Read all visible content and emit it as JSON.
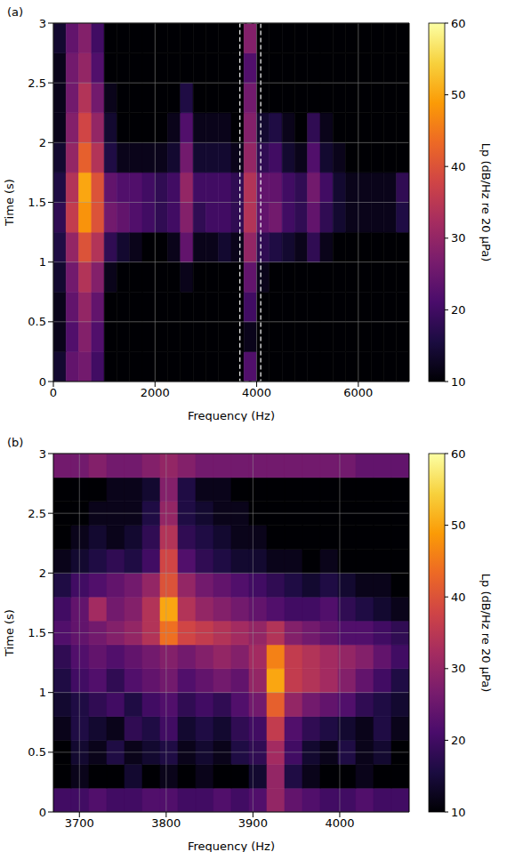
{
  "chart_data": [
    {
      "type": "heatmap",
      "panel_label": "(a)",
      "x_label": "Frequency (Hz)",
      "y_label": "Time (s)",
      "xlim": [
        0,
        7000
      ],
      "xticks": [
        0,
        2000,
        4000,
        6000
      ],
      "ylim": [
        0,
        3
      ],
      "yticks": [
        0,
        0.5,
        1,
        1.5,
        2,
        2.5,
        3
      ],
      "grid": true,
      "x_bins": [
        0,
        250,
        500,
        750,
        1000,
        1250,
        1500,
        1750,
        2000,
        2250,
        2500,
        2750,
        3000,
        3250,
        3500,
        3750,
        4000,
        4250,
        4500,
        4750,
        5000,
        5250,
        5500,
        5750,
        6000,
        6250,
        6500,
        6750,
        7000
      ],
      "y_bins": [
        0,
        0.25,
        0.5,
        0.75,
        1,
        1.25,
        1.5,
        1.75,
        2,
        2.25,
        2.5,
        2.75,
        3
      ],
      "z": [
        [
          14,
          24,
          26,
          20,
          10,
          10,
          10,
          10,
          10,
          10,
          10,
          10,
          10,
          10,
          10,
          22,
          10,
          10,
          10,
          10,
          10,
          10,
          10,
          10,
          10,
          10,
          10,
          10
        ],
        [
          12,
          22,
          28,
          22,
          10,
          10,
          10,
          10,
          10,
          10,
          10,
          10,
          10,
          10,
          10,
          12,
          10,
          10,
          10,
          10,
          10,
          10,
          10,
          10,
          10,
          10,
          10,
          10
        ],
        [
          12,
          24,
          30,
          24,
          10,
          10,
          10,
          10,
          10,
          10,
          10,
          10,
          10,
          10,
          10,
          20,
          10,
          10,
          10,
          10,
          10,
          10,
          10,
          10,
          10,
          10,
          10,
          10
        ],
        [
          14,
          26,
          34,
          28,
          12,
          10,
          10,
          10,
          10,
          10,
          12,
          10,
          10,
          10,
          10,
          24,
          12,
          10,
          10,
          10,
          10,
          10,
          10,
          10,
          10,
          10,
          10,
          10
        ],
        [
          16,
          30,
          40,
          34,
          18,
          14,
          12,
          10,
          10,
          12,
          24,
          12,
          12,
          14,
          12,
          30,
          18,
          16,
          14,
          12,
          18,
          12,
          10,
          10,
          10,
          10,
          10,
          10
        ],
        [
          18,
          36,
          48,
          40,
          26,
          24,
          22,
          20,
          18,
          20,
          28,
          18,
          20,
          20,
          18,
          34,
          24,
          26,
          20,
          18,
          24,
          18,
          14,
          12,
          12,
          12,
          12,
          16
        ],
        [
          16,
          34,
          50,
          40,
          24,
          22,
          22,
          20,
          18,
          20,
          30,
          20,
          20,
          20,
          18,
          34,
          24,
          24,
          20,
          18,
          26,
          20,
          14,
          12,
          12,
          12,
          12,
          18
        ],
        [
          14,
          30,
          42,
          34,
          16,
          12,
          12,
          12,
          12,
          14,
          26,
          14,
          14,
          14,
          12,
          30,
          18,
          20,
          14,
          12,
          22,
          14,
          12,
          10,
          10,
          10,
          10,
          10
        ],
        [
          12,
          28,
          38,
          30,
          14,
          10,
          10,
          10,
          10,
          12,
          22,
          12,
          12,
          12,
          10,
          28,
          14,
          16,
          12,
          10,
          18,
          12,
          10,
          10,
          10,
          10,
          10,
          10
        ],
        [
          12,
          26,
          34,
          26,
          12,
          10,
          10,
          10,
          10,
          10,
          16,
          10,
          10,
          10,
          10,
          26,
          10,
          10,
          10,
          10,
          10,
          10,
          10,
          10,
          10,
          10,
          10,
          10
        ],
        [
          12,
          26,
          30,
          22,
          10,
          10,
          10,
          10,
          10,
          10,
          10,
          10,
          10,
          10,
          10,
          22,
          10,
          10,
          10,
          10,
          10,
          10,
          10,
          10,
          10,
          10,
          10,
          10
        ],
        [
          14,
          24,
          28,
          20,
          10,
          10,
          10,
          10,
          10,
          10,
          10,
          10,
          10,
          10,
          10,
          28,
          10,
          10,
          10,
          10,
          10,
          10,
          10,
          10,
          10,
          10,
          10,
          10
        ]
      ],
      "highlight_x": [
        3670,
        4080
      ],
      "colorbar": {
        "label": "Lp (dB/Hz re 20 μPa)",
        "range": [
          10,
          60
        ],
        "ticks": [
          10,
          20,
          30,
          40,
          50,
          60
        ]
      },
      "colors": [
        "#000004",
        "#1b0c41",
        "#4a0c6b",
        "#781c6d",
        "#a52c60",
        "#cf4446",
        "#ed6925",
        "#fb9b06",
        "#f7d13d",
        "#fcffa4"
      ]
    },
    {
      "type": "heatmap",
      "panel_label": "(b)",
      "x_label": "Frequency (Hz)",
      "y_label": "Time (s)",
      "xlim": [
        3670,
        4080
      ],
      "xticks": [
        3700,
        3800,
        3900,
        4000
      ],
      "ylim": [
        0,
        3
      ],
      "yticks": [
        0,
        0.5,
        1,
        1.5,
        2,
        2.5,
        3
      ],
      "grid": true,
      "x_bins": [
        3670,
        3690.5,
        3711,
        3731.5,
        3752,
        3772.5,
        3793,
        3813.5,
        3834,
        3854.5,
        3875,
        3895.5,
        3916,
        3936.5,
        3957,
        3977.5,
        3998,
        4018.5,
        4039,
        4059.5,
        4080
      ],
      "y_bins": [
        0,
        0.2,
        0.4,
        0.6,
        0.8,
        1,
        1.2,
        1.4,
        1.6,
        1.8,
        2,
        2.2,
        2.4,
        2.6,
        2.8,
        3
      ],
      "z": [
        [
          20,
          20,
          22,
          20,
          20,
          22,
          22,
          20,
          20,
          22,
          20,
          22,
          30,
          24,
          22,
          20,
          20,
          22,
          20,
          20
        ],
        [
          10,
          12,
          10,
          10,
          14,
          10,
          12,
          10,
          12,
          10,
          10,
          14,
          30,
          16,
          12,
          10,
          10,
          12,
          10,
          10
        ],
        [
          10,
          14,
          12,
          16,
          12,
          14,
          16,
          12,
          14,
          12,
          16,
          18,
          32,
          20,
          14,
          12,
          16,
          12,
          14,
          10
        ],
        [
          12,
          16,
          14,
          12,
          18,
          16,
          20,
          14,
          16,
          14,
          18,
          20,
          36,
          22,
          18,
          16,
          14,
          12,
          16,
          12
        ],
        [
          14,
          16,
          18,
          20,
          16,
          20,
          22,
          18,
          20,
          18,
          22,
          26,
          42,
          30,
          26,
          24,
          22,
          18,
          16,
          14
        ],
        [
          16,
          20,
          22,
          18,
          22,
          24,
          26,
          22,
          24,
          26,
          24,
          30,
          50,
          36,
          34,
          32,
          28,
          24,
          20,
          16
        ],
        [
          18,
          22,
          24,
          22,
          24,
          26,
          28,
          26,
          28,
          30,
          28,
          32,
          46,
          36,
          34,
          32,
          30,
          28,
          24,
          20
        ],
        [
          22,
          24,
          26,
          28,
          30,
          34,
          44,
          38,
          36,
          34,
          32,
          30,
          34,
          28,
          26,
          24,
          22,
          22,
          20,
          18
        ],
        [
          20,
          24,
          32,
          26,
          28,
          34,
          50,
          34,
          30,
          28,
          26,
          24,
          22,
          20,
          20,
          22,
          18,
          16,
          14,
          12
        ],
        [
          16,
          20,
          22,
          24,
          26,
          30,
          40,
          30,
          26,
          24,
          22,
          20,
          18,
          16,
          14,
          16,
          14,
          12,
          12,
          10
        ],
        [
          12,
          14,
          16,
          18,
          16,
          20,
          38,
          22,
          18,
          16,
          14,
          14,
          12,
          12,
          10,
          12,
          10,
          10,
          10,
          10
        ],
        [
          10,
          12,
          14,
          12,
          14,
          18,
          34,
          18,
          16,
          14,
          12,
          12,
          10,
          10,
          10,
          10,
          10,
          10,
          10,
          10
        ],
        [
          10,
          10,
          12,
          12,
          12,
          16,
          30,
          16,
          14,
          12,
          12,
          10,
          10,
          10,
          10,
          10,
          10,
          10,
          10,
          10
        ],
        [
          10,
          10,
          10,
          12,
          12,
          14,
          28,
          16,
          12,
          12,
          10,
          10,
          10,
          10,
          10,
          10,
          10,
          10,
          10,
          10
        ],
        [
          26,
          26,
          28,
          26,
          26,
          28,
          30,
          28,
          26,
          26,
          26,
          26,
          26,
          26,
          26,
          26,
          26,
          24,
          24,
          24
        ]
      ],
      "colorbar": {
        "label": "Lp (dB/Hz re 20 μPa)",
        "range": [
          10,
          60
        ],
        "ticks": [
          10,
          20,
          30,
          40,
          50,
          60
        ]
      },
      "colors": [
        "#000004",
        "#1b0c41",
        "#4a0c6b",
        "#781c6d",
        "#a52c60",
        "#cf4446",
        "#ed6925",
        "#fb9b06",
        "#f7d13d",
        "#fcffa4"
      ]
    }
  ]
}
